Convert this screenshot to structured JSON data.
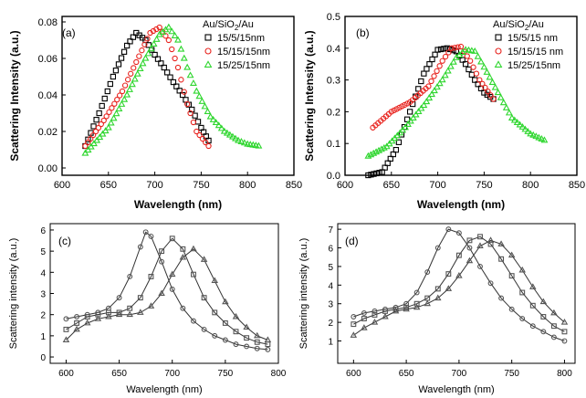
{
  "chart_data": [
    {
      "panel": "(a)",
      "type": "scatter",
      "xlabel": "Wavelength (nm)",
      "ylabel": "Scattering Intensity (a.u.)",
      "xlim": [
        600,
        850
      ],
      "ylim": [
        -0.004,
        0.083
      ],
      "xticks": [
        600,
        650,
        700,
        750,
        800,
        850
      ],
      "yticks": [
        0.0,
        0.02,
        0.04,
        0.06,
        0.08
      ],
      "ytick_labels": [
        "0.00",
        "0.02",
        "0.04",
        "0.06",
        "0.08"
      ],
      "legend_title_pre": "Au/SiO",
      "legend_title_sub": "2",
      "legend_title_post": "/Au",
      "legend_position": "top-right",
      "series": [
        {
          "name": "15/5/15nm",
          "marker": "square",
          "color": "#000000",
          "x": [
            625,
            640,
            655,
            670,
            680,
            690,
            700,
            710,
            720,
            730,
            740,
            750,
            758
          ],
          "y": [
            0.012,
            0.03,
            0.05,
            0.067,
            0.074,
            0.07,
            0.062,
            0.055,
            0.047,
            0.04,
            0.032,
            0.022,
            0.015
          ]
        },
        {
          "name": "15/15/15nm",
          "marker": "circle",
          "color": "#e8231e",
          "x": [
            625,
            645,
            665,
            680,
            695,
            705,
            715,
            725,
            735,
            745,
            758
          ],
          "y": [
            0.012,
            0.026,
            0.042,
            0.058,
            0.074,
            0.077,
            0.07,
            0.055,
            0.035,
            0.02,
            0.012
          ]
        },
        {
          "name": "15/25/15nm",
          "marker": "triangle",
          "color": "#2ed62e",
          "x": [
            625,
            650,
            670,
            690,
            705,
            715,
            725,
            735,
            745,
            760,
            775,
            790,
            800,
            812
          ],
          "y": [
            0.008,
            0.022,
            0.04,
            0.06,
            0.073,
            0.077,
            0.07,
            0.055,
            0.042,
            0.028,
            0.02,
            0.015,
            0.013,
            0.012
          ]
        }
      ]
    },
    {
      "panel": "(b)",
      "type": "scatter",
      "xlabel": "Wavelength (nm)",
      "ylabel": "Scattering Intensity (a.u.)",
      "xlim": [
        600,
        850
      ],
      "ylim": [
        0.0,
        0.5
      ],
      "xticks": [
        600,
        650,
        700,
        750,
        800,
        850
      ],
      "yticks": [
        0.0,
        0.1,
        0.2,
        0.3,
        0.4,
        0.5
      ],
      "ytick_labels": [
        "0.0",
        "0.1",
        "0.2",
        "0.3",
        "0.4",
        "0.5"
      ],
      "legend_title_pre": "Au/SiO",
      "legend_title_sub": "2",
      "legend_title_post": "/Au",
      "legend_position": "top-right",
      "series": [
        {
          "name": "15/5/15 nm",
          "marker": "square",
          "color": "#000000",
          "x": [
            625,
            640,
            655,
            670,
            685,
            700,
            710,
            720,
            730,
            740,
            750,
            760
          ],
          "y": [
            0.0,
            0.01,
            0.08,
            0.2,
            0.32,
            0.395,
            0.4,
            0.39,
            0.35,
            0.3,
            0.26,
            0.24
          ]
        },
        {
          "name": "15/15/15 nm",
          "marker": "circle",
          "color": "#e8231e",
          "x": [
            630,
            650,
            670,
            690,
            705,
            715,
            725,
            735,
            745,
            760
          ],
          "y": [
            0.15,
            0.2,
            0.23,
            0.28,
            0.36,
            0.4,
            0.405,
            0.36,
            0.3,
            0.24
          ]
        },
        {
          "name": "15/25/15nm",
          "marker": "triangle",
          "color": "#2ed62e",
          "x": [
            625,
            645,
            665,
            685,
            705,
            720,
            730,
            740,
            750,
            765,
            780,
            800,
            815
          ],
          "y": [
            0.06,
            0.09,
            0.15,
            0.22,
            0.3,
            0.37,
            0.395,
            0.39,
            0.34,
            0.26,
            0.18,
            0.13,
            0.11
          ]
        }
      ]
    },
    {
      "panel": "(c)",
      "type": "line",
      "xlabel": "Wavelength (nm)",
      "ylabel": "Scattering intensity (a.u.)",
      "xlim": [
        585,
        800
      ],
      "ylim": [
        -0.3,
        6.3
      ],
      "xticks": [
        600,
        650,
        700,
        750,
        800
      ],
      "yticks": [
        0,
        1,
        2,
        3,
        4,
        5,
        6
      ],
      "ytick_labels": [
        "0",
        "1",
        "2",
        "3",
        "4",
        "5",
        "6"
      ],
      "series": [
        {
          "marker": "circle",
          "x": [
            600,
            610,
            620,
            630,
            640,
            650,
            660,
            670,
            675,
            680,
            690,
            700,
            710,
            720,
            730,
            740,
            750,
            760,
            770,
            780,
            790
          ],
          "y": [
            1.8,
            1.9,
            2.0,
            2.1,
            2.3,
            2.8,
            3.8,
            5.2,
            5.9,
            5.7,
            4.5,
            3.2,
            2.3,
            1.7,
            1.3,
            1.0,
            0.8,
            0.6,
            0.5,
            0.4,
            0.35
          ]
        },
        {
          "marker": "square",
          "x": [
            600,
            610,
            620,
            630,
            640,
            650,
            660,
            670,
            680,
            690,
            700,
            710,
            720,
            730,
            740,
            750,
            760,
            770,
            780,
            790
          ],
          "y": [
            1.3,
            1.6,
            1.9,
            2.0,
            2.1,
            2.1,
            2.3,
            2.8,
            3.8,
            5.0,
            5.6,
            5.1,
            3.9,
            2.8,
            2.1,
            1.6,
            1.2,
            0.9,
            0.7,
            0.6
          ]
        },
        {
          "marker": "triangle",
          "x": [
            600,
            610,
            620,
            630,
            640,
            650,
            660,
            670,
            680,
            690,
            700,
            710,
            720,
            730,
            740,
            750,
            760,
            770,
            780,
            790
          ],
          "y": [
            0.8,
            1.3,
            1.6,
            1.8,
            1.9,
            2.0,
            2.0,
            2.1,
            2.4,
            3.0,
            3.9,
            4.7,
            5.1,
            4.6,
            3.6,
            2.6,
            1.9,
            1.4,
            1.0,
            0.8
          ]
        }
      ]
    },
    {
      "panel": "(d)",
      "type": "line",
      "xlabel": "Wavelength (nm)",
      "ylabel": "Scattering intensity (a.u.)",
      "xlim": [
        585,
        810
      ],
      "ylim": [
        -0.2,
        7.3
      ],
      "xticks": [
        600,
        650,
        700,
        750,
        800
      ],
      "yticks": [
        1,
        2,
        3,
        4,
        5,
        6,
        7
      ],
      "ytick_labels": [
        "1",
        "2",
        "3",
        "4",
        "5",
        "6",
        "7"
      ],
      "series": [
        {
          "marker": "circle",
          "x": [
            600,
            610,
            620,
            630,
            640,
            650,
            660,
            670,
            680,
            690,
            700,
            710,
            720,
            730,
            740,
            750,
            760,
            770,
            780,
            790,
            800
          ],
          "y": [
            2.3,
            2.5,
            2.6,
            2.7,
            2.8,
            3.0,
            3.6,
            4.7,
            6.0,
            7.0,
            6.8,
            6.0,
            5.0,
            4.1,
            3.3,
            2.7,
            2.2,
            1.8,
            1.5,
            1.2,
            1.0
          ]
        },
        {
          "marker": "square",
          "x": [
            600,
            610,
            620,
            630,
            640,
            650,
            660,
            670,
            680,
            690,
            700,
            710,
            720,
            730,
            740,
            750,
            760,
            770,
            780,
            790,
            800
          ],
          "y": [
            1.9,
            2.2,
            2.4,
            2.6,
            2.7,
            2.8,
            3.0,
            3.3,
            3.8,
            4.6,
            5.6,
            6.4,
            6.6,
            6.2,
            5.4,
            4.5,
            3.6,
            2.9,
            2.3,
            1.8,
            1.5
          ]
        },
        {
          "marker": "triangle",
          "x": [
            600,
            610,
            620,
            630,
            640,
            650,
            660,
            670,
            680,
            690,
            700,
            710,
            720,
            730,
            740,
            750,
            760,
            770,
            780,
            790,
            800
          ],
          "y": [
            1.3,
            1.7,
            2.0,
            2.3,
            2.6,
            2.7,
            2.8,
            3.0,
            3.3,
            3.8,
            4.5,
            5.3,
            6.1,
            6.4,
            6.2,
            5.6,
            4.8,
            3.9,
            3.1,
            2.5,
            2.0
          ]
        }
      ]
    }
  ]
}
